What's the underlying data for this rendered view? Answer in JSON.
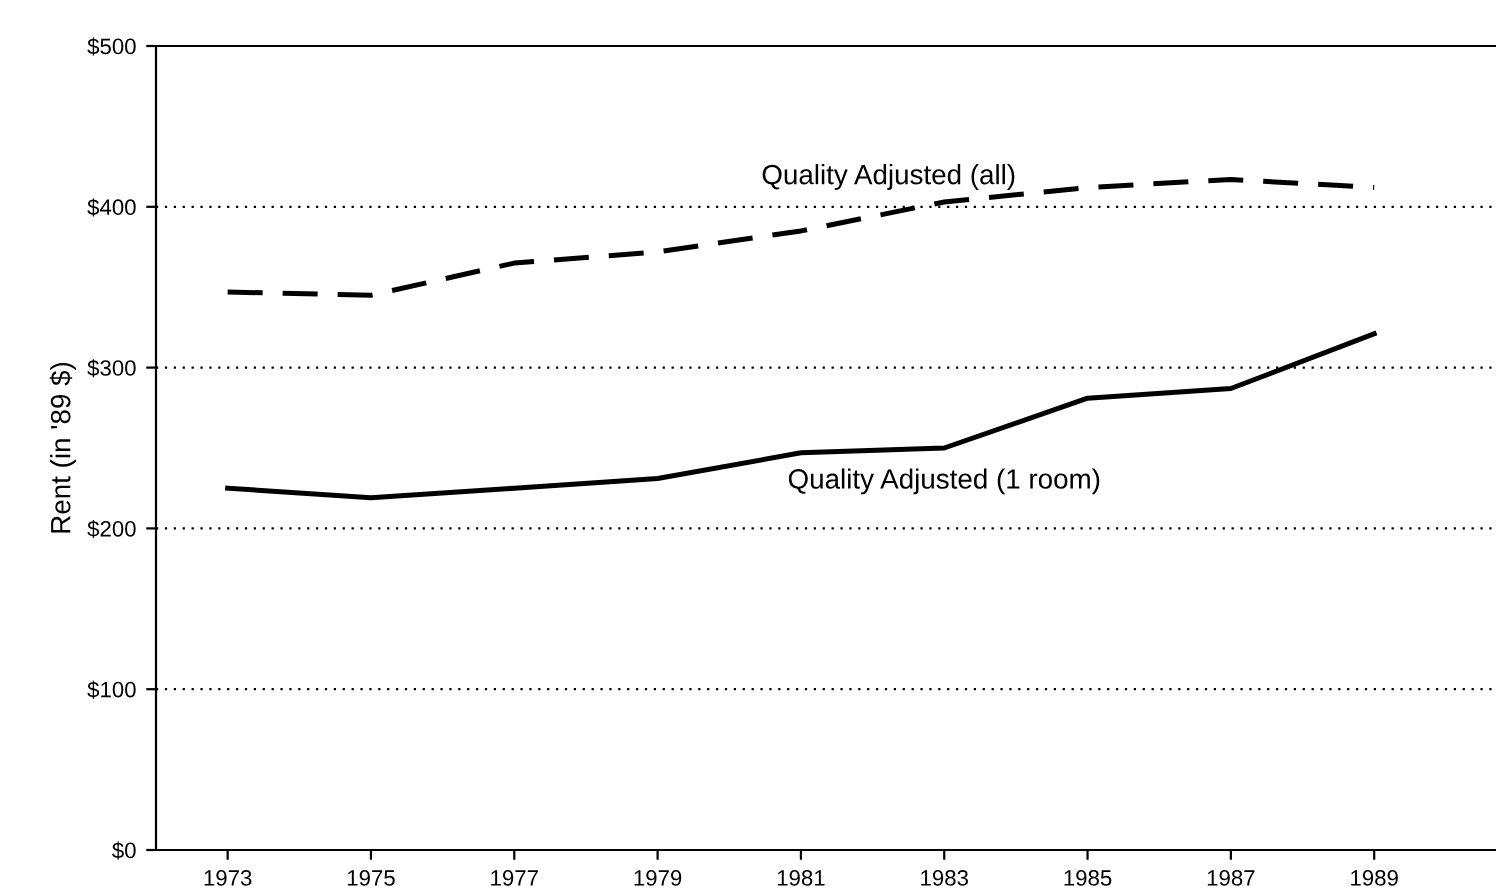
{
  "chart_data": {
    "type": "line",
    "ylabel": "Rent (in '89 $)",
    "x": [
      1973,
      1975,
      1977,
      1979,
      1981,
      1983,
      1985,
      1987,
      1989
    ],
    "series": [
      {
        "color": "#000000",
        "line_style": "dashed",
        "values": [
          347,
          345,
          365,
          372,
          385,
          403,
          412,
          417,
          412
        ]
      },
      {
        "color": "#000000",
        "line_style": "solid",
        "values": [
          225,
          219,
          225,
          231,
          247,
          250,
          281,
          287,
          321
        ]
      }
    ],
    "annotations": [
      {
        "text": "Quality Adjusted (all)",
        "x": 1983,
        "y": 403
      },
      {
        "text": "Quality Adjusted (1 room)",
        "x": 1983,
        "y": 250
      }
    ],
    "xlim": [
      1972,
      1990.7
    ],
    "xticks": [
      1973,
      1975,
      1977,
      1979,
      1981,
      1983,
      1985,
      1987,
      1989
    ],
    "ylim": [
      0,
      500
    ],
    "yticks": [
      {
        "value": 0,
        "label": "$0"
      },
      {
        "value": 100,
        "label": "$100"
      },
      {
        "value": 200,
        "label": "$200"
      },
      {
        "value": 300,
        "label": "$300"
      },
      {
        "value": 400,
        "label": "$400"
      },
      {
        "value": 500,
        "label": "$500"
      }
    ],
    "grid": "y",
    "marker": "none",
    "legend": false
  }
}
